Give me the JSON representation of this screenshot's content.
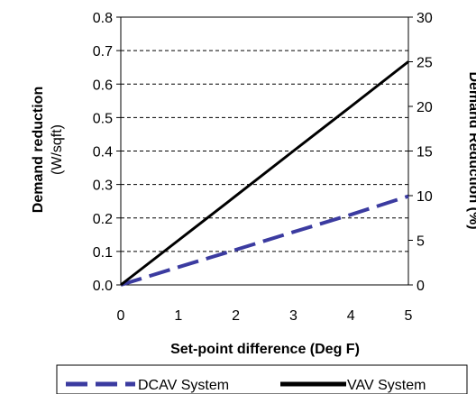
{
  "chart_data": {
    "type": "line",
    "title": "",
    "xlabel": "Set-point difference (Deg F)",
    "ylabel_left": [
      "Demand reduction",
      "(W/sqft)"
    ],
    "ylabel_right": "Demand Reduction (%)",
    "xlim": [
      0,
      5
    ],
    "ylim_left": [
      0,
      0.8
    ],
    "ylim_right": [
      0,
      30
    ],
    "x_ticks": [
      "0",
      "1",
      "2",
      "3",
      "4",
      "5"
    ],
    "y_ticks_left": [
      "0.0",
      "0.1",
      "0.2",
      "0.3",
      "0.4",
      "0.5",
      "0.6",
      "0.7",
      "0.8"
    ],
    "y_ticks_right": [
      "0",
      "5",
      "10",
      "15",
      "20",
      "25",
      "30"
    ],
    "grid": "horizontal dashed",
    "legend_position": "bottom",
    "series": [
      {
        "name": "DCAV System",
        "x": [
          0,
          1,
          2,
          3,
          4,
          5
        ],
        "y": [
          0.0,
          0.053,
          0.105,
          0.158,
          0.21,
          0.265
        ],
        "color": "#3b3ba0",
        "style": "dashed"
      },
      {
        "name": "VAV System",
        "x": [
          0,
          1,
          2,
          3,
          4,
          5
        ],
        "y": [
          0.0,
          0.133,
          0.266,
          0.4,
          0.533,
          0.667
        ],
        "color": "#000000",
        "style": "solid"
      }
    ]
  }
}
